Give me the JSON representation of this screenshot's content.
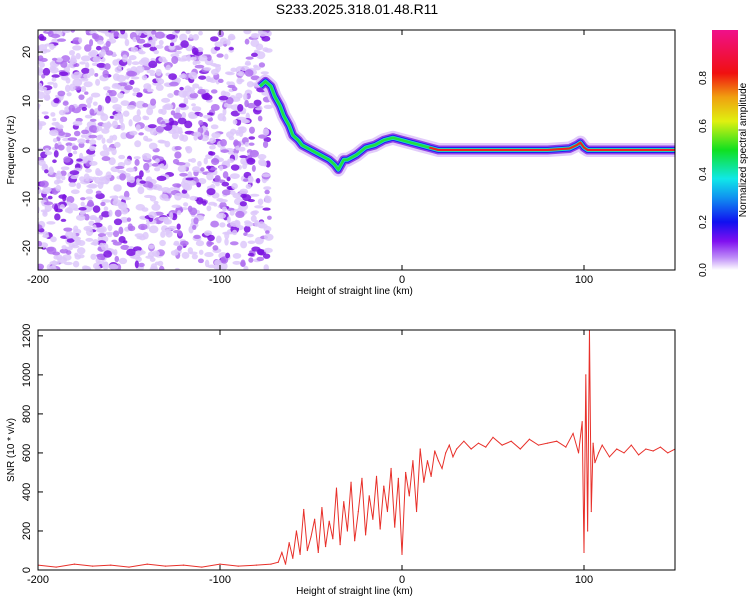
{
  "title": "S233.2025.318.01.48.R11",
  "chart_data": [
    {
      "type": "heatmap",
      "title": "S233.2025.318.01.48.R11",
      "xlabel": "Height of straight line (km)",
      "ylabel": "Frequency (Hz)",
      "xlim": [
        -200,
        150
      ],
      "ylim": [
        -24.5,
        24.5
      ],
      "xticks": [
        -200,
        -100,
        0,
        100
      ],
      "xtick_labels": [
        "-200",
        "-100",
        "0",
        "100"
      ],
      "yticks": [
        -20,
        -10,
        0,
        10,
        20
      ],
      "ytick_labels": [
        "-20",
        "-10",
        "0",
        "10",
        "20"
      ],
      "noise_region_x": [
        -200,
        -75
      ],
      "ridge": {
        "x": [
          -78,
          -75,
          -72,
          -70,
          -67,
          -65,
          -62,
          -60,
          -57,
          -55,
          -50,
          -45,
          -40,
          -37,
          -35,
          -32,
          -30,
          -25,
          -20,
          -15,
          -10,
          -5,
          0,
          5,
          10,
          15,
          20,
          40,
          60,
          80,
          92,
          96,
          98,
          100,
          102,
          105,
          120,
          150
        ],
        "freq": [
          13,
          14,
          13,
          11,
          9,
          7,
          5,
          3,
          2,
          1,
          0,
          -1,
          -2,
          -3,
          -4,
          -2,
          -2,
          -1,
          0.5,
          1,
          2,
          2.5,
          2,
          1.5,
          1,
          0.5,
          0,
          0,
          0,
          0,
          0.3,
          1,
          1.5,
          0.5,
          0,
          0,
          0,
          0
        ]
      },
      "colorbar": {
        "label": "Normalized spectral amplitude",
        "ticks": [
          0.0,
          0.2,
          0.4,
          0.6,
          0.8
        ],
        "tick_labels": [
          "0.0",
          "0.2",
          "0.4",
          "0.6",
          "0.8"
        ],
        "range": [
          0,
          1
        ]
      }
    },
    {
      "type": "line",
      "xlabel": "Height of straight line (km)",
      "ylabel": "SNR (10 * v/v)",
      "xlim": [
        -200,
        150
      ],
      "ylim": [
        0,
        1230
      ],
      "xticks": [
        -200,
        -100,
        0,
        100
      ],
      "xtick_labels": [
        "-200",
        "-100",
        "0",
        "100"
      ],
      "yticks": [
        0,
        200,
        400,
        600,
        800,
        1000,
        1200
      ],
      "ytick_labels": [
        "0",
        "200",
        "400",
        "600",
        "800",
        "1000",
        "1200"
      ],
      "series": [
        {
          "name": "SNR",
          "color": "#e8302a",
          "x": [
            -200,
            -190,
            -180,
            -170,
            -160,
            -150,
            -140,
            -130,
            -120,
            -110,
            -100,
            -90,
            -80,
            -72,
            -68,
            -66,
            -64,
            -62,
            -60,
            -58,
            -56,
            -54,
            -52,
            -50,
            -48,
            -46,
            -44,
            -42,
            -40,
            -38,
            -36,
            -34,
            -32,
            -30,
            -28,
            -26,
            -24,
            -22,
            -20,
            -18,
            -16,
            -14,
            -12,
            -10,
            -8,
            -6,
            -4,
            -2,
            0,
            2,
            4,
            6,
            8,
            10,
            12,
            14,
            16,
            18,
            20,
            22,
            24,
            26,
            28,
            30,
            34,
            38,
            42,
            46,
            50,
            55,
            60,
            65,
            70,
            75,
            80,
            85,
            90,
            94,
            97,
            99,
            100,
            101,
            102,
            103,
            104,
            105,
            106,
            108,
            110,
            114,
            118,
            122,
            126,
            130,
            134,
            138,
            142,
            146,
            150
          ],
          "y": [
            25,
            15,
            30,
            20,
            25,
            15,
            30,
            20,
            25,
            15,
            30,
            20,
            25,
            30,
            40,
            90,
            30,
            140,
            60,
            200,
            80,
            310,
            100,
            170,
            260,
            90,
            320,
            120,
            250,
            160,
            420,
            130,
            350,
            200,
            450,
            150,
            300,
            470,
            180,
            380,
            260,
            480,
            210,
            430,
            300,
            520,
            220,
            470,
            80,
            500,
            380,
            560,
            300,
            620,
            450,
            560,
            480,
            610,
            560,
            520,
            600,
            640,
            580,
            620,
            660,
            620,
            650,
            630,
            680,
            640,
            660,
            620,
            670,
            640,
            650,
            660,
            630,
            700,
            600,
            760,
            90,
            1000,
            200,
            1230,
            300,
            650,
            550,
            600,
            640,
            580,
            620,
            600,
            640,
            590,
            620,
            610,
            630,
            600,
            620
          ]
        }
      ]
    }
  ]
}
